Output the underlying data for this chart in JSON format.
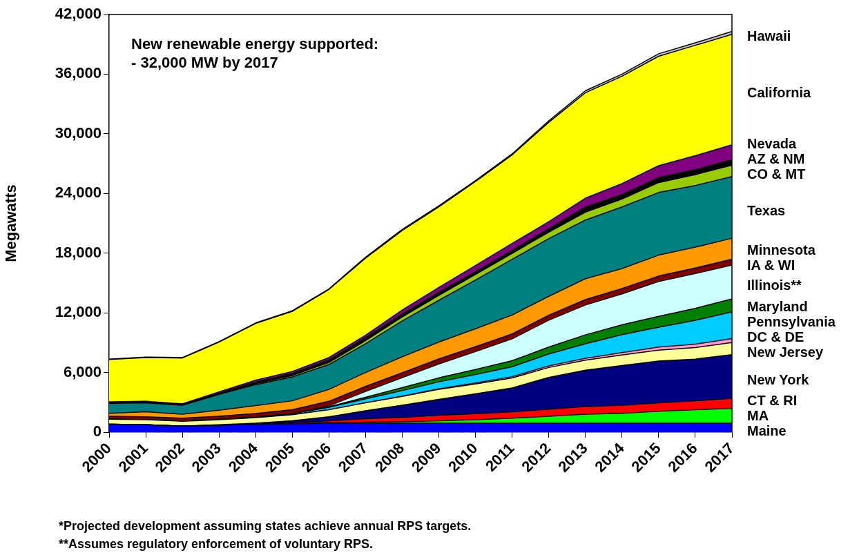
{
  "chart_data": {
    "type": "area",
    "stacked": true,
    "ylabel": "Megawatts",
    "categories": [
      "2000",
      "2001",
      "2002",
      "2003",
      "2004",
      "2005",
      "2006",
      "2007",
      "2008",
      "2009",
      "2010",
      "2011",
      "2012",
      "2013",
      "2014",
      "2015",
      "2016",
      "2017"
    ],
    "ylim": [
      0,
      42000
    ],
    "yticks": [
      {
        "value": 0,
        "label": "0"
      },
      {
        "value": 6000,
        "label": "6,000"
      },
      {
        "value": 12000,
        "label": "12,000"
      },
      {
        "value": 18000,
        "label": "18,000"
      },
      {
        "value": 24000,
        "label": "24,000"
      },
      {
        "value": 30000,
        "label": "30,000"
      },
      {
        "value": 36000,
        "label": "36,000"
      },
      {
        "value": 42000,
        "label": "42,000"
      }
    ],
    "grid": false,
    "legend": false,
    "annotations": [
      "New renewable energy supported:",
      "- 32,000 MW by 2017",
      "*Projected development assuming states achieve annual RPS targets.",
      "**Assumes regulatory enforcement of voluntary RPS."
    ],
    "series": [
      {
        "name": "Maine",
        "color": "#0000ff",
        "values": [
          800,
          750,
          600,
          700,
          800,
          850,
          900,
          900,
          900,
          900,
          900,
          900,
          900,
          900,
          900,
          900,
          900,
          900
        ]
      },
      {
        "name": "MA",
        "color": "#00ff00",
        "values": [
          0,
          0,
          0,
          0,
          0,
          0,
          50,
          100,
          150,
          250,
          350,
          500,
          700,
          900,
          1000,
          1200,
          1350,
          1500
        ]
      },
      {
        "name": "CT & RI",
        "color": "#ff0000",
        "values": [
          0,
          0,
          0,
          0,
          0,
          100,
          200,
          350,
          450,
          550,
          600,
          650,
          700,
          780,
          800,
          850,
          900,
          1000
        ]
      },
      {
        "name": "New York",
        "color": "#000080",
        "values": [
          0,
          0,
          0,
          50,
          100,
          200,
          400,
          800,
          1200,
          1600,
          2000,
          2400,
          3200,
          3650,
          4000,
          4200,
          4200,
          4400
        ]
      },
      {
        "name": "New Jersey",
        "color": "#ffff99",
        "values": [
          500,
          500,
          500,
          500,
          550,
          600,
          700,
          800,
          900,
          1000,
          1000,
          1000,
          1000,
          1000,
          1050,
          1100,
          1150,
          1200
        ]
      },
      {
        "name": "DC & DE",
        "color": "#ff99cc",
        "values": [
          0,
          0,
          0,
          0,
          0,
          0,
          0,
          0,
          30,
          60,
          100,
          130,
          160,
          200,
          250,
          300,
          350,
          400
        ]
      },
      {
        "name": "Pennsylvania",
        "color": "#00ccff",
        "values": [
          0,
          0,
          0,
          50,
          80,
          100,
          250,
          400,
          550,
          700,
          850,
          1000,
          1200,
          1450,
          1800,
          2000,
          2400,
          2700
        ]
      },
      {
        "name": "Maryland",
        "color": "#008000",
        "values": [
          0,
          0,
          0,
          0,
          0,
          0,
          50,
          150,
          300,
          400,
          500,
          600,
          700,
          900,
          1000,
          1100,
          1200,
          1300
        ]
      },
      {
        "name": "Illinois**",
        "color": "#ccffff",
        "values": [
          0,
          0,
          0,
          0,
          0,
          0,
          100,
          600,
          1000,
          1400,
          1800,
          2200,
          2700,
          3000,
          3100,
          3500,
          3500,
          3400
        ]
      },
      {
        "name": "IA & WI",
        "color": "#800000",
        "values": [
          300,
          300,
          300,
          300,
          350,
          400,
          450,
          500,
          500,
          500,
          500,
          500,
          500,
          550,
          550,
          550,
          550,
          600
        ]
      },
      {
        "name": "Minnesota",
        "color": "#ff9900",
        "values": [
          300,
          500,
          400,
          600,
          800,
          900,
          1200,
          1400,
          1600,
          1700,
          1800,
          1900,
          1900,
          2100,
          2000,
          2100,
          2100,
          2100
        ]
      },
      {
        "name": "Texas",
        "color": "#008080",
        "values": [
          1000,
          900,
          900,
          1600,
          2100,
          2400,
          2500,
          2900,
          3600,
          4200,
          4900,
          5600,
          5800,
          5900,
          6200,
          6300,
          6200,
          6200
        ]
      },
      {
        "name": "CO & MT",
        "color": "#99cc00",
        "values": [
          0,
          0,
          0,
          0,
          100,
          150,
          200,
          300,
          400,
          500,
          550,
          600,
          650,
          800,
          800,
          1000,
          1100,
          1150
        ]
      },
      {
        "name": "AZ & NM",
        "color": "#000000",
        "values": [
          50,
          50,
          50,
          100,
          150,
          200,
          250,
          300,
          300,
          300,
          300,
          300,
          350,
          500,
          450,
          500,
          500,
          550
        ]
      },
      {
        "name": "Nevada",
        "color": "#800080",
        "values": [
          100,
          100,
          100,
          150,
          200,
          200,
          250,
          250,
          400,
          500,
          600,
          700,
          700,
          900,
          1100,
          1200,
          1400,
          1500
        ]
      },
      {
        "name": "California",
        "color": "#ffff00",
        "values": [
          4250,
          4400,
          4600,
          5000,
          5700,
          6050,
          6850,
          7750,
          8000,
          8100,
          8450,
          8900,
          10000,
          10600,
          10800,
          11000,
          11100,
          11100
        ]
      },
      {
        "name": "Hawaii",
        "color": "#c0c0c0",
        "values": [
          50,
          50,
          50,
          50,
          50,
          50,
          50,
          100,
          100,
          100,
          100,
          100,
          150,
          200,
          200,
          250,
          250,
          300
        ]
      }
    ]
  }
}
